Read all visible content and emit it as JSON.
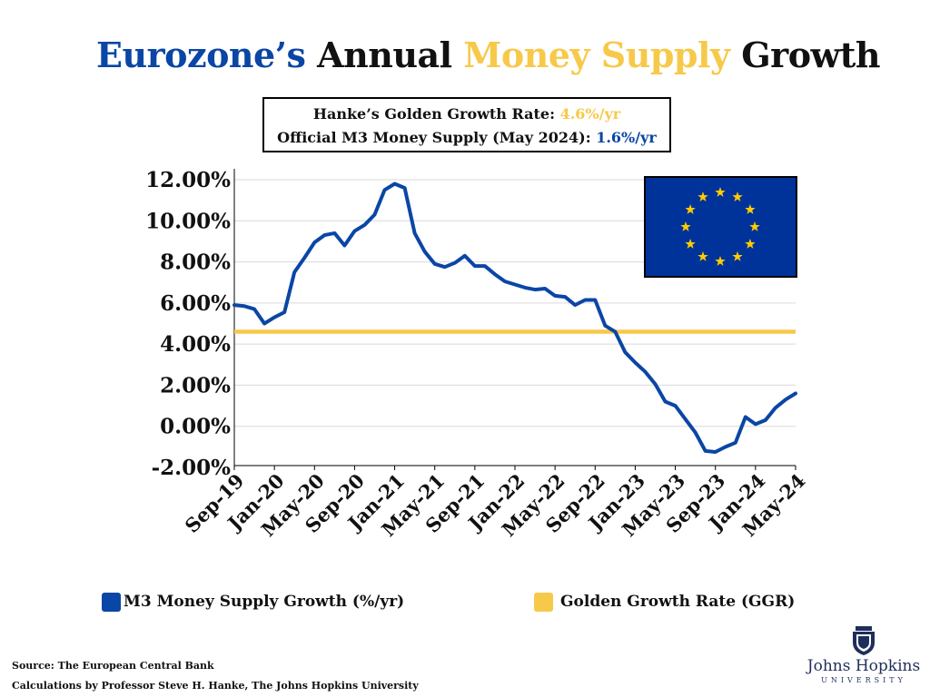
{
  "header": {
    "title_part1": "Eurozone’s",
    "title_part2": " Annual ",
    "title_part3": "Money Supply",
    "title_part4": " Growth"
  },
  "infobox": {
    "line1_label": "Hanke’s Golden Growth Rate: ",
    "line1_value": "4.6%/yr",
    "line2_label": "Official M3 Money Supply (May 2024): ",
    "line2_value": "1.6%/yr"
  },
  "colors": {
    "brand_blue": "#0a46a5",
    "gold": "#f7c94a",
    "flag_blue": "#003399",
    "flag_star": "#ffcc00",
    "jhu_navy": "#1f2f5c"
  },
  "chart_data": {
    "type": "line",
    "ylim": [
      -2,
      12
    ],
    "yticks": [
      "12.00%",
      "10.00%",
      "8.00%",
      "6.00%",
      "4.00%",
      "2.00%",
      "0.00%",
      "-2.00%"
    ],
    "ytick_values": [
      12,
      10,
      8,
      6,
      4,
      2,
      0,
      -2
    ],
    "xticks": [
      "Sep-19",
      "Jan-20",
      "May-20",
      "Sep-20",
      "Jan-21",
      "May-21",
      "Sep-21",
      "Jan-22",
      "May-22",
      "Sep-22",
      "Jan-23",
      "May-23",
      "Sep-23",
      "Jan-24",
      "May-24"
    ],
    "grid": true,
    "legend_position": "bottom",
    "series": [
      {
        "name": "M3 Money Supply Growth (%/yr)",
        "color": "#0a46a5",
        "x": [
          "Sep-19",
          "Oct-19",
          "Nov-19",
          "Dec-19",
          "Jan-20",
          "Feb-20",
          "Mar-20",
          "Apr-20",
          "May-20",
          "Jun-20",
          "Jul-20",
          "Aug-20",
          "Sep-20",
          "Oct-20",
          "Nov-20",
          "Dec-20",
          "Jan-21",
          "Feb-21",
          "Mar-21",
          "Apr-21",
          "May-21",
          "Jun-21",
          "Jul-21",
          "Aug-21",
          "Sep-21",
          "Oct-21",
          "Nov-21",
          "Dec-21",
          "Jan-22",
          "Feb-22",
          "Mar-22",
          "Apr-22",
          "May-22",
          "Jun-22",
          "Jul-22",
          "Aug-22",
          "Sep-22",
          "Oct-22",
          "Nov-22",
          "Dec-22",
          "Jan-23",
          "Feb-23",
          "Mar-23",
          "Apr-23",
          "May-23",
          "Jun-23",
          "Jul-23",
          "Aug-23",
          "Sep-23",
          "Oct-23",
          "Nov-23",
          "Dec-23",
          "Jan-24",
          "Feb-24",
          "Mar-24",
          "Apr-24",
          "May-24"
        ],
        "values": [
          5.9,
          5.85,
          5.7,
          5.0,
          5.3,
          5.55,
          7.5,
          8.2,
          8.95,
          9.3,
          9.4,
          8.8,
          9.5,
          9.8,
          10.3,
          11.5,
          11.8,
          11.6,
          9.4,
          8.5,
          7.9,
          7.75,
          7.95,
          8.3,
          7.8,
          7.8,
          7.4,
          7.05,
          6.9,
          6.75,
          6.65,
          6.7,
          6.35,
          6.3,
          5.9,
          6.15,
          6.15,
          4.9,
          4.6,
          3.6,
          3.1,
          2.65,
          2.05,
          1.2,
          1.0,
          0.35,
          -0.3,
          -1.2,
          -1.25,
          -1.0,
          -0.8,
          0.45,
          0.1,
          0.3,
          0.9,
          1.3,
          1.6
        ]
      },
      {
        "name": "Golden Growth Rate (GGR)",
        "color": "#f7c94a",
        "value": 4.6
      }
    ]
  },
  "legend": {
    "m3_label": "M3 Money Supply Growth (%/yr)",
    "ggr_label": "Golden Growth Rate (GGR)"
  },
  "footer": {
    "source": "Source: The European Central Bank",
    "calculations": "Calculations by Professor Steve H. Hanke, The Johns Hopkins University"
  },
  "logo": {
    "name": "Johns Hopkins",
    "subtitle": "UNIVERSITY"
  }
}
